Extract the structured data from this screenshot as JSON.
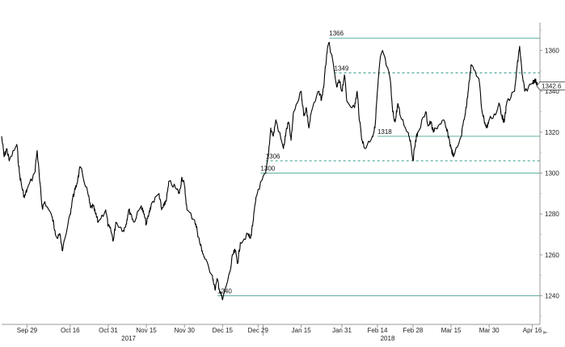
{
  "chart_data": {
    "type": "line",
    "title": "",
    "xlabel": "",
    "ylabel": "",
    "ylim": [
      1226,
      1372
    ],
    "yticks": [
      1240,
      1260,
      1280,
      1300,
      1320,
      1340,
      1360
    ],
    "xrange": [
      "2017-09-19",
      "2018-04-19"
    ],
    "xticks": [
      {
        "date": "2017-09-29",
        "label": "Sep 29"
      },
      {
        "date": "2017-10-16",
        "label": "Oct 16"
      },
      {
        "date": "2017-10-31",
        "label": "Oct 31"
      },
      {
        "date": "2017-11-15",
        "label": "Nov 15"
      },
      {
        "date": "2017-11-30",
        "label": "Nov 30"
      },
      {
        "date": "2017-12-15",
        "label": "Dec 15"
      },
      {
        "date": "2017-12-29",
        "label": "Dec 29"
      },
      {
        "date": "2018-01-15",
        "label": "Jan 15"
      },
      {
        "date": "2018-01-31",
        "label": "Jan 31"
      },
      {
        "date": "2018-02-14",
        "label": "Feb 14"
      },
      {
        "date": "2018-02-28",
        "label": "Feb 28"
      },
      {
        "date": "2018-03-15",
        "label": "Mar 15"
      },
      {
        "date": "2018-03-30",
        "label": "Mar 30"
      },
      {
        "date": "2018-04-16",
        "label": "Apr 16"
      }
    ],
    "year_labels": [
      {
        "date": "2017-11-08",
        "label": "2017"
      },
      {
        "date": "2018-02-18",
        "label": "2018"
      }
    ],
    "last_value": {
      "value": 1342.6,
      "label": "1342.6"
    },
    "levels": [
      {
        "value": 1366,
        "label": "1366",
        "style": "solid",
        "label_date": "2018-01-26",
        "from": "2018-01-26"
      },
      {
        "value": 1349,
        "label": "1349",
        "style": "dashed",
        "label_date": "2018-01-28",
        "from": "2018-01-28"
      },
      {
        "value": 1318,
        "label": "1318",
        "style": "solid",
        "label_date": "2018-02-14",
        "from": "2018-02-14"
      },
      {
        "value": 1306,
        "label": "1306",
        "style": "dashed",
        "label_date": "2018-01-01",
        "from": "2018-01-01"
      },
      {
        "value": 1300,
        "label": "1300",
        "style": "solid",
        "label_date": "2017-12-30",
        "from": "2017-12-30"
      },
      {
        "value": 1240,
        "label": "1240",
        "style": "solid",
        "label_date": "2017-12-13",
        "from": "2017-12-13"
      }
    ],
    "series": [
      {
        "points": [
          [
            "2017-09-19",
            1318
          ],
          [
            "2017-09-20",
            1308
          ],
          [
            "2017-09-21",
            1312
          ],
          [
            "2017-09-22",
            1306
          ],
          [
            "2017-09-25",
            1314
          ],
          [
            "2017-09-26",
            1300
          ],
          [
            "2017-09-27",
            1293
          ],
          [
            "2017-09-28",
            1288
          ],
          [
            "2017-09-29",
            1292
          ],
          [
            "2017-10-02",
            1300
          ],
          [
            "2017-10-03",
            1311
          ],
          [
            "2017-10-04",
            1296
          ],
          [
            "2017-10-05",
            1283
          ],
          [
            "2017-10-06",
            1286
          ],
          [
            "2017-10-09",
            1278
          ],
          [
            "2017-10-10",
            1272
          ],
          [
            "2017-10-11",
            1268
          ],
          [
            "2017-10-12",
            1270
          ],
          [
            "2017-10-13",
            1262
          ],
          [
            "2017-10-16",
            1280
          ],
          [
            "2017-10-17",
            1288
          ],
          [
            "2017-10-18",
            1292
          ],
          [
            "2017-10-19",
            1297
          ],
          [
            "2017-10-20",
            1303
          ],
          [
            "2017-10-23",
            1290
          ],
          [
            "2017-10-24",
            1283
          ],
          [
            "2017-10-25",
            1284
          ],
          [
            "2017-10-26",
            1280
          ],
          [
            "2017-10-27",
            1276
          ],
          [
            "2017-10-30",
            1282
          ],
          [
            "2017-10-31",
            1274
          ],
          [
            "2017-11-01",
            1272
          ],
          [
            "2017-11-02",
            1267
          ],
          [
            "2017-11-03",
            1276
          ],
          [
            "2017-11-06",
            1272
          ],
          [
            "2017-11-07",
            1275
          ],
          [
            "2017-11-08",
            1282
          ],
          [
            "2017-11-09",
            1280
          ],
          [
            "2017-11-10",
            1276
          ],
          [
            "2017-11-13",
            1284
          ],
          [
            "2017-11-14",
            1280
          ],
          [
            "2017-11-15",
            1275
          ],
          [
            "2017-11-16",
            1280
          ],
          [
            "2017-11-17",
            1285
          ],
          [
            "2017-11-20",
            1290
          ],
          [
            "2017-11-21",
            1282
          ],
          [
            "2017-11-22",
            1284
          ],
          [
            "2017-11-23",
            1288
          ],
          [
            "2017-11-24",
            1296
          ],
          [
            "2017-11-27",
            1292
          ],
          [
            "2017-11-28",
            1290
          ],
          [
            "2017-11-29",
            1298
          ],
          [
            "2017-11-30",
            1294
          ],
          [
            "2017-12-01",
            1282
          ],
          [
            "2017-12-04",
            1277
          ],
          [
            "2017-12-05",
            1272
          ],
          [
            "2017-12-06",
            1266
          ],
          [
            "2017-12-07",
            1262
          ],
          [
            "2017-12-08",
            1258
          ],
          [
            "2017-12-11",
            1250
          ],
          [
            "2017-12-12",
            1243
          ],
          [
            "2017-12-13",
            1248
          ],
          [
            "2017-12-14",
            1242
          ],
          [
            "2017-12-15",
            1238
          ],
          [
            "2017-12-18",
            1252
          ],
          [
            "2017-12-19",
            1260
          ],
          [
            "2017-12-20",
            1262
          ],
          [
            "2017-12-21",
            1256
          ],
          [
            "2017-12-22",
            1266
          ],
          [
            "2017-12-25",
            1270
          ],
          [
            "2017-12-26",
            1268
          ],
          [
            "2017-12-27",
            1276
          ],
          [
            "2017-12-28",
            1286
          ],
          [
            "2017-12-29",
            1292
          ],
          [
            "2018-01-01",
            1300
          ],
          [
            "2018-01-02",
            1308
          ],
          [
            "2018-01-03",
            1322
          ],
          [
            "2018-01-04",
            1318
          ],
          [
            "2018-01-05",
            1326
          ],
          [
            "2018-01-08",
            1312
          ],
          [
            "2018-01-09",
            1320
          ],
          [
            "2018-01-10",
            1325
          ],
          [
            "2018-01-11",
            1316
          ],
          [
            "2018-01-12",
            1330
          ],
          [
            "2018-01-15",
            1340
          ],
          [
            "2018-01-16",
            1328
          ],
          [
            "2018-01-17",
            1332
          ],
          [
            "2018-01-18",
            1322
          ],
          [
            "2018-01-19",
            1330
          ],
          [
            "2018-01-22",
            1340
          ],
          [
            "2018-01-23",
            1336
          ],
          [
            "2018-01-24",
            1344
          ],
          [
            "2018-01-25",
            1358
          ],
          [
            "2018-01-26",
            1364
          ],
          [
            "2018-01-29",
            1342
          ],
          [
            "2018-01-30",
            1345
          ],
          [
            "2018-01-31",
            1340
          ],
          [
            "2018-02-01",
            1348
          ],
          [
            "2018-02-02",
            1335
          ],
          [
            "2018-02-05",
            1332
          ],
          [
            "2018-02-06",
            1340
          ],
          [
            "2018-02-07",
            1325
          ],
          [
            "2018-02-08",
            1316
          ],
          [
            "2018-02-09",
            1312
          ],
          [
            "2018-02-12",
            1318
          ],
          [
            "2018-02-13",
            1322
          ],
          [
            "2018-02-14",
            1340
          ],
          [
            "2018-02-15",
            1355
          ],
          [
            "2018-02-16",
            1360
          ],
          [
            "2018-02-19",
            1346
          ],
          [
            "2018-02-20",
            1330
          ],
          [
            "2018-02-21",
            1325
          ],
          [
            "2018-02-22",
            1334
          ],
          [
            "2018-02-23",
            1328
          ],
          [
            "2018-02-26",
            1320
          ],
          [
            "2018-02-27",
            1316
          ],
          [
            "2018-02-28",
            1306
          ],
          [
            "2018-03-01",
            1316
          ],
          [
            "2018-03-02",
            1320
          ],
          [
            "2018-03-05",
            1330
          ],
          [
            "2018-03-06",
            1323
          ],
          [
            "2018-03-07",
            1325
          ],
          [
            "2018-03-08",
            1320
          ],
          [
            "2018-03-09",
            1322
          ],
          [
            "2018-03-12",
            1326
          ],
          [
            "2018-03-13",
            1322
          ],
          [
            "2018-03-14",
            1318
          ],
          [
            "2018-03-15",
            1312
          ],
          [
            "2018-03-16",
            1308
          ],
          [
            "2018-03-19",
            1318
          ],
          [
            "2018-03-20",
            1326
          ],
          [
            "2018-03-21",
            1332
          ],
          [
            "2018-03-22",
            1344
          ],
          [
            "2018-03-23",
            1353
          ],
          [
            "2018-03-26",
            1346
          ],
          [
            "2018-03-27",
            1332
          ],
          [
            "2018-03-28",
            1326
          ],
          [
            "2018-03-29",
            1322
          ],
          [
            "2018-03-30",
            1326
          ],
          [
            "2018-04-02",
            1330
          ],
          [
            "2018-04-03",
            1334
          ],
          [
            "2018-04-04",
            1328
          ],
          [
            "2018-04-05",
            1325
          ],
          [
            "2018-04-06",
            1335
          ],
          [
            "2018-04-09",
            1340
          ],
          [
            "2018-04-10",
            1352
          ],
          [
            "2018-04-11",
            1362
          ],
          [
            "2018-04-12",
            1348
          ],
          [
            "2018-04-13",
            1340
          ],
          [
            "2018-04-16",
            1344
          ],
          [
            "2018-04-17",
            1346
          ],
          [
            "2018-04-18",
            1342.6
          ]
        ]
      }
    ]
  }
}
